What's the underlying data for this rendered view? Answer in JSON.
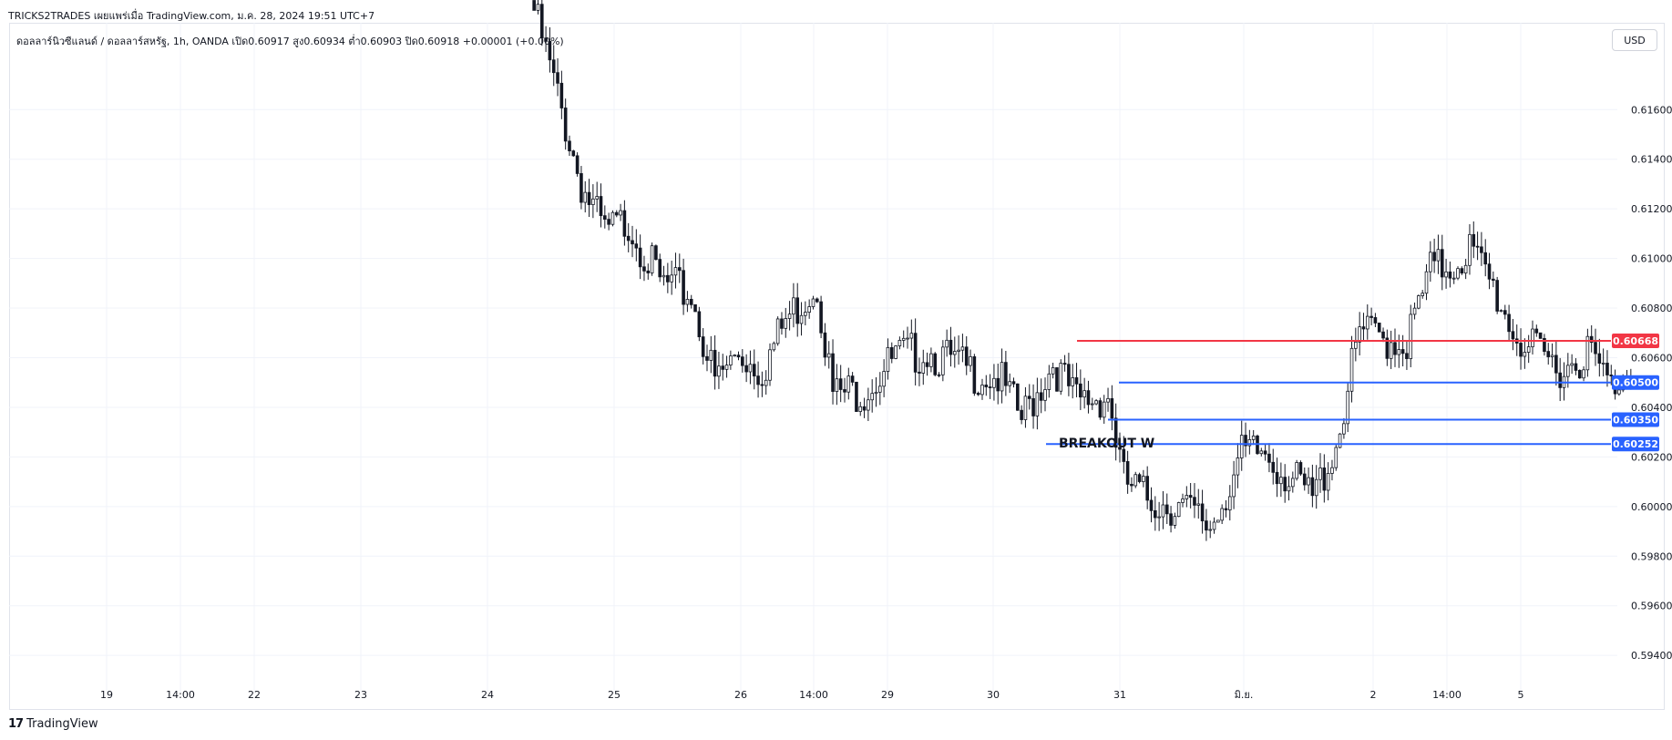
{
  "header": {
    "attribution": "TRICKS2TRADES เผยแพร่เมื่อ TradingView.com, ม.ค. 28, 2024 19:51 UTC+7"
  },
  "legend": {
    "text": "ดอลลาร์นิวซีแลนด์ / ดอลลาร์สหรัฐ, 1h, OANDA  เปิด0.60917  สูง0.60934  ต่ำ0.60903  ปิด0.60918  +0.00001 (+0.00%)"
  },
  "currency_button": "USD",
  "footer": {
    "brand": "TradingView",
    "mark": "17"
  },
  "colors": {
    "candle_up_body": "#ffffff",
    "candle_down_body": "#131722",
    "candle_wick": "#131722",
    "grid": "#f0f3fa",
    "resistance": "#f23645",
    "support": "#2962ff"
  },
  "chart_data": {
    "type": "candlestick",
    "symbol": "NZDUSD",
    "interval": "1h",
    "exchange": "OANDA",
    "ylim": [
      0.5925,
      0.6195
    ],
    "grid": true,
    "y_ticks": [
      "0.61600",
      "0.61400",
      "0.61200",
      "0.61000",
      "0.60800",
      "0.60600",
      "0.60400",
      "0.60200",
      "0.60000",
      "0.59800",
      "0.59600",
      "0.59400"
    ],
    "x_ticks": [
      "19",
      "14:00",
      "22",
      "23",
      "24",
      "25",
      "26",
      "14:00",
      "29",
      "30",
      "31",
      "มิ.ย.",
      "2",
      "14:00",
      "5"
    ],
    "key_points": [
      {
        "i": 0,
        "p": 0.62
      },
      {
        "i": 6,
        "p": 0.6165
      },
      {
        "i": 12,
        "p": 0.613
      },
      {
        "i": 18,
        "p": 0.611
      },
      {
        "i": 24,
        "p": 0.6115
      },
      {
        "i": 32,
        "p": 0.609
      },
      {
        "i": 40,
        "p": 0.6085
      },
      {
        "i": 46,
        "p": 0.605
      },
      {
        "i": 52,
        "p": 0.6062
      },
      {
        "i": 58,
        "p": 0.6055
      },
      {
        "i": 64,
        "p": 0.6075
      },
      {
        "i": 72,
        "p": 0.609
      },
      {
        "i": 76,
        "p": 0.6045
      },
      {
        "i": 84,
        "p": 0.6047
      },
      {
        "i": 92,
        "p": 0.606
      },
      {
        "i": 100,
        "p": 0.6063
      },
      {
        "i": 110,
        "p": 0.6055
      },
      {
        "i": 118,
        "p": 0.6052
      },
      {
        "i": 124,
        "p": 0.6035
      },
      {
        "i": 132,
        "p": 0.6058
      },
      {
        "i": 138,
        "p": 0.6042
      },
      {
        "i": 146,
        "p": 0.6045
      },
      {
        "i": 150,
        "p": 0.601
      },
      {
        "i": 156,
        "p": 0.6003
      },
      {
        "i": 164,
        "p": 0.6
      },
      {
        "i": 172,
        "p": 0.5992
      },
      {
        "i": 180,
        "p": 0.602
      },
      {
        "i": 186,
        "p": 0.6022
      },
      {
        "i": 192,
        "p": 0.6012
      },
      {
        "i": 198,
        "p": 0.6003
      },
      {
        "i": 204,
        "p": 0.6025
      },
      {
        "i": 210,
        "p": 0.607
      },
      {
        "i": 216,
        "p": 0.6068
      },
      {
        "i": 222,
        "p": 0.6066
      },
      {
        "i": 228,
        "p": 0.6095
      },
      {
        "i": 234,
        "p": 0.6098
      },
      {
        "i": 238,
        "p": 0.6104
      },
      {
        "i": 244,
        "p": 0.6088
      },
      {
        "i": 250,
        "p": 0.6068
      },
      {
        "i": 256,
        "p": 0.606
      },
      {
        "i": 262,
        "p": 0.6056
      },
      {
        "i": 268,
        "p": 0.6063
      },
      {
        "i": 274,
        "p": 0.6048
      },
      {
        "i": 279,
        "p": 0.6058
      }
    ],
    "total_candles": 280,
    "levels": [
      {
        "label": "0.60668",
        "price": 0.60668,
        "kind": "resistance"
      },
      {
        "label": "0.60500",
        "price": 0.605,
        "kind": "support"
      },
      {
        "label": "0.60350",
        "price": 0.6035,
        "kind": "support"
      },
      {
        "label": "0.60252",
        "price": 0.60252,
        "kind": "support"
      }
    ],
    "annotations": [
      {
        "text": "BREAKOUT W",
        "price": 0.6018
      }
    ]
  }
}
